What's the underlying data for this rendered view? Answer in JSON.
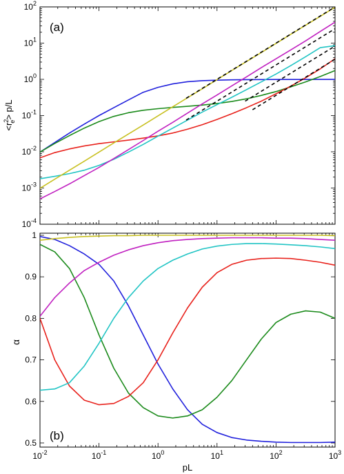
{
  "chart_data": [
    {
      "type": "line",
      "panel_label": "(a)",
      "xlabel": "",
      "ylabel_parts": {
        "open": "<r",
        "sup": "2",
        "sub": "e",
        "close": "> p/L"
      },
      "xscale": "log",
      "yscale": "log",
      "xlim": [
        0.01,
        1000
      ],
      "ylim": [
        0.0001,
        100
      ],
      "x_tick_labels": [],
      "y_ticks": [
        {
          "v": 0.0001,
          "base": "10",
          "exp": "-4"
        },
        {
          "v": 0.001,
          "base": "10",
          "exp": "-3"
        },
        {
          "v": 0.01,
          "base": "10",
          "exp": "-2"
        },
        {
          "v": 0.1,
          "base": "10",
          "exp": "-1"
        },
        {
          "v": 1,
          "base": "10",
          "exp": "0"
        },
        {
          "v": 10,
          "base": "10",
          "exp": "1"
        },
        {
          "v": 100,
          "base": "10",
          "exp": "2"
        }
      ],
      "grid": false,
      "series": [
        {
          "color": "#1f1fdc",
          "x": [
            0.01,
            0.0178,
            0.0316,
            0.0562,
            0.1,
            0.178,
            0.316,
            0.562,
            1,
            1.78,
            3.16,
            5.62,
            10,
            17.8,
            31.6,
            56.2,
            100,
            178,
            316,
            562,
            1000
          ],
          "y": [
            0.0098,
            0.018,
            0.033,
            0.058,
            0.1,
            0.165,
            0.27,
            0.44,
            0.6,
            0.75,
            0.86,
            0.92,
            0.95,
            0.97,
            0.98,
            0.985,
            0.99,
            0.992,
            0.994,
            0.995,
            0.995
          ]
        },
        {
          "color": "#1a8a1a",
          "x": [
            0.01,
            0.0178,
            0.0316,
            0.0562,
            0.1,
            0.178,
            0.316,
            0.562,
            1,
            1.78,
            3.16,
            5.62,
            10,
            17.8,
            31.6,
            56.2,
            100,
            178,
            316,
            562,
            1000
          ],
          "y": [
            0.0098,
            0.017,
            0.028,
            0.045,
            0.068,
            0.095,
            0.12,
            0.14,
            0.155,
            0.168,
            0.18,
            0.195,
            0.215,
            0.245,
            0.29,
            0.36,
            0.46,
            0.62,
            0.85,
            1.2,
            1.75
          ]
        },
        {
          "color": "#e8201a",
          "x": [
            0.01,
            0.0178,
            0.0316,
            0.0562,
            0.1,
            0.178,
            0.316,
            0.562,
            1,
            1.78,
            3.16,
            5.62,
            10,
            17.8,
            31.6,
            56.2,
            100,
            178,
            316,
            562,
            1000
          ],
          "y": [
            0.0068,
            0.0095,
            0.012,
            0.0145,
            0.0168,
            0.0188,
            0.021,
            0.0238,
            0.0275,
            0.033,
            0.042,
            0.056,
            0.078,
            0.112,
            0.165,
            0.25,
            0.4,
            0.65,
            1.1,
            1.95,
            3.7
          ]
        },
        {
          "color": "#20c4c4",
          "x": [
            0.01,
            0.0178,
            0.0316,
            0.0562,
            0.1,
            0.178,
            0.316,
            0.562,
            1,
            1.78,
            3.16,
            5.62,
            10,
            17.8,
            31.6,
            56.2,
            100,
            178,
            316,
            562,
            1000
          ],
          "y": [
            0.0018,
            0.0021,
            0.0025,
            0.0031,
            0.0042,
            0.0062,
            0.0098,
            0.016,
            0.027,
            0.045,
            0.075,
            0.125,
            0.2,
            0.32,
            0.52,
            0.85,
            1.4,
            2.4,
            4.2,
            7.5,
            8.5
          ]
        },
        {
          "color": "#c020c0",
          "x": [
            0.01,
            0.0178,
            0.0316,
            0.0562,
            0.1,
            0.178,
            0.316,
            0.562,
            1,
            1.78,
            3.16,
            5.62,
            10,
            17.8,
            31.6,
            56.2,
            100,
            178,
            316,
            562,
            1000
          ],
          "y": [
            0.0005,
            0.0008,
            0.0013,
            0.0022,
            0.0037,
            0.0065,
            0.0115,
            0.0205,
            0.037,
            0.065,
            0.117,
            0.21,
            0.37,
            0.66,
            1.17,
            2.1,
            3.7,
            6.5,
            11.5,
            21,
            38
          ]
        },
        {
          "color": "#c8c020",
          "x": [
            0.01,
            0.0178,
            0.0316,
            0.0562,
            0.1,
            0.178,
            0.316,
            0.562,
            1,
            1.78,
            3.16,
            5.62,
            10,
            17.8,
            31.6,
            56.2,
            100,
            178,
            316,
            562,
            1000
          ],
          "y": [
            0.00098,
            0.00175,
            0.0031,
            0.0055,
            0.0098,
            0.0175,
            0.031,
            0.055,
            0.098,
            0.175,
            0.31,
            0.55,
            0.98,
            1.75,
            3.1,
            5.5,
            9.8,
            17.5,
            31,
            55,
            98
          ]
        }
      ],
      "dashed_series": [
        {
          "x": [
            3,
            1000
          ],
          "y": [
            0.3,
            100
          ]
        },
        {
          "x": [
            3,
            1000
          ],
          "y": [
            0.075,
            25
          ]
        },
        {
          "x": [
            30,
            1000
          ],
          "y": [
            0.25,
            8.3
          ]
        },
        {
          "x": [
            40,
            1000
          ],
          "y": [
            0.145,
            3.6
          ]
        }
      ]
    },
    {
      "type": "line",
      "panel_label": "(b)",
      "xlabel": "pL",
      "ylabel": "α",
      "xscale": "log",
      "yscale": "linear",
      "xlim": [
        0.01,
        1000
      ],
      "ylim": [
        0.49,
        1.005
      ],
      "x_ticks": [
        {
          "v": 0.01,
          "base": "10",
          "exp": "-2"
        },
        {
          "v": 0.1,
          "base": "10",
          "exp": "-1"
        },
        {
          "v": 1,
          "base": "10",
          "exp": "0"
        },
        {
          "v": 10,
          "base": "10",
          "exp": "1"
        },
        {
          "v": 100,
          "base": "10",
          "exp": "2"
        },
        {
          "v": 1000,
          "base": "10",
          "exp": "3"
        }
      ],
      "y_ticks": [
        {
          "v": 0.5,
          "label": "0.5"
        },
        {
          "v": 0.6,
          "label": "0.6"
        },
        {
          "v": 0.7,
          "label": "0.7"
        },
        {
          "v": 0.8,
          "label": "0.8"
        },
        {
          "v": 0.9,
          "label": "0.9"
        },
        {
          "v": 1.0,
          "label": "1"
        }
      ],
      "grid": false,
      "series": [
        {
          "color": "#1f1fdc",
          "x": [
            0.01,
            0.0178,
            0.0316,
            0.0562,
            0.1,
            0.178,
            0.316,
            0.562,
            1,
            1.78,
            3.16,
            5.62,
            10,
            17.8,
            31.6,
            56.2,
            100,
            178,
            316,
            562,
            1000
          ],
          "y": [
            0.997,
            0.99,
            0.975,
            0.955,
            0.93,
            0.89,
            0.83,
            0.76,
            0.69,
            0.63,
            0.58,
            0.545,
            0.525,
            0.513,
            0.507,
            0.504,
            0.502,
            0.501,
            0.501,
            0.501,
            0.502
          ]
        },
        {
          "color": "#1a8a1a",
          "x": [
            0.01,
            0.0178,
            0.0316,
            0.0562,
            0.1,
            0.178,
            0.316,
            0.562,
            1,
            1.78,
            3.16,
            5.62,
            10,
            17.8,
            31.6,
            56.2,
            100,
            178,
            316,
            562,
            1000
          ],
          "y": [
            0.978,
            0.96,
            0.92,
            0.85,
            0.76,
            0.68,
            0.62,
            0.585,
            0.565,
            0.56,
            0.565,
            0.58,
            0.61,
            0.65,
            0.7,
            0.75,
            0.79,
            0.81,
            0.818,
            0.815,
            0.8
          ]
        },
        {
          "color": "#e8201a",
          "x": [
            0.01,
            0.0178,
            0.0316,
            0.0562,
            0.1,
            0.178,
            0.316,
            0.562,
            1,
            1.78,
            3.16,
            5.62,
            10,
            17.8,
            31.6,
            56.2,
            100,
            178,
            316,
            562,
            1000
          ],
          "y": [
            0.8,
            0.7,
            0.637,
            0.603,
            0.592,
            0.595,
            0.612,
            0.645,
            0.7,
            0.765,
            0.825,
            0.875,
            0.91,
            0.93,
            0.94,
            0.944,
            0.945,
            0.944,
            0.94,
            0.935,
            0.928
          ]
        },
        {
          "color": "#20c4c4",
          "x": [
            0.01,
            0.0178,
            0.0316,
            0.0562,
            0.1,
            0.178,
            0.316,
            0.562,
            1,
            1.78,
            3.16,
            5.62,
            10,
            17.8,
            31.6,
            56.2,
            100,
            178,
            316,
            562,
            1000
          ],
          "y": [
            0.627,
            0.63,
            0.645,
            0.685,
            0.74,
            0.8,
            0.85,
            0.89,
            0.92,
            0.94,
            0.955,
            0.967,
            0.974,
            0.978,
            0.98,
            0.98,
            0.979,
            0.977,
            0.975,
            0.972,
            0.968
          ]
        },
        {
          "color": "#c020c0",
          "x": [
            0.01,
            0.0178,
            0.0316,
            0.0562,
            0.1,
            0.178,
            0.316,
            0.562,
            1,
            1.78,
            3.16,
            5.62,
            10,
            17.8,
            31.6,
            56.2,
            100,
            178,
            316,
            562,
            1000
          ],
          "y": [
            0.805,
            0.85,
            0.885,
            0.915,
            0.935,
            0.952,
            0.965,
            0.975,
            0.982,
            0.987,
            0.99,
            0.992,
            0.993,
            0.994,
            0.994,
            0.994,
            0.993,
            0.993,
            0.992,
            0.99,
            0.988
          ]
        },
        {
          "color": "#c8c020",
          "x": [
            0.01,
            0.0178,
            0.0316,
            0.0562,
            0.1,
            0.178,
            0.316,
            0.562,
            1,
            1.78,
            3.16,
            5.62,
            10,
            17.8,
            31.6,
            56.2,
            100,
            178,
            316,
            562,
            1000
          ],
          "y": [
            0.988,
            0.992,
            0.995,
            0.997,
            0.998,
            0.999,
            0.999,
            1.0,
            1.0,
            1.0,
            1.0,
            1.0,
            1.0,
            1.0,
            1.0,
            1.0,
            1.0,
            1.0,
            1.0,
            1.0,
            0.999
          ]
        }
      ]
    }
  ]
}
